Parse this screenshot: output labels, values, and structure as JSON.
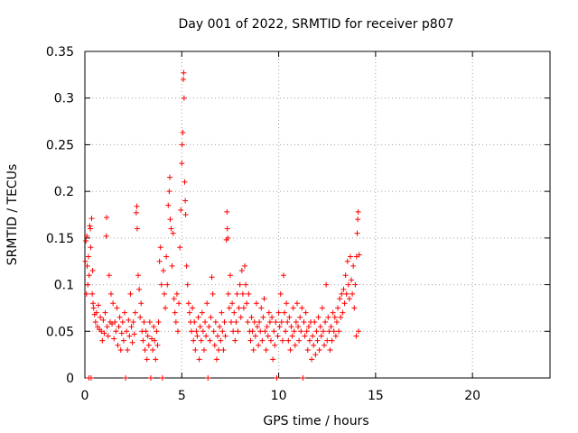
{
  "chart_data": {
    "type": "scatter",
    "title": "Day 001 of 2022, SRMTID for receiver p807",
    "xlabel": "GPS time / hours",
    "ylabel": "SRMTID / TECUs",
    "xlim": [
      0,
      24
    ],
    "ylim": [
      0,
      0.35
    ],
    "xticks": [
      0,
      5,
      10,
      15,
      20
    ],
    "xtick_labels": [
      "0",
      "5",
      "10",
      "15",
      "20"
    ],
    "yticks": [
      0,
      0.05,
      0.1,
      0.15,
      0.2,
      0.25,
      0.3,
      0.35
    ],
    "ytick_labels": [
      "0",
      "0.05",
      "0.1",
      "0.15",
      "0.2",
      "0.25",
      "0.3",
      "0.35"
    ],
    "grid": true,
    "marker": "+",
    "color": "#ff0000",
    "series": [
      {
        "name": "SRMTID",
        "points": [
          [
            0.02,
            0.125
          ],
          [
            0.05,
            0.147
          ],
          [
            0.08,
            0.09
          ],
          [
            0.1,
            0.152
          ],
          [
            0.12,
            0.12
          ],
          [
            0.15,
            0.1
          ],
          [
            0.18,
            0.13
          ],
          [
            0.2,
            0.0
          ],
          [
            0.22,
            0.11
          ],
          [
            0.25,
            0.163
          ],
          [
            0.28,
            0.16
          ],
          [
            0.3,
            0.14
          ],
          [
            0.32,
            0.0
          ],
          [
            0.35,
            0.171
          ],
          [
            0.38,
            0.09
          ],
          [
            0.4,
            0.115
          ],
          [
            0.42,
            0.08
          ],
          [
            0.45,
            0.075
          ],
          [
            0.5,
            0.068
          ],
          [
            0.55,
            0.06
          ],
          [
            0.6,
            0.07
          ],
          [
            0.65,
            0.055
          ],
          [
            0.7,
            0.078
          ],
          [
            0.75,
            0.052
          ],
          [
            0.8,
            0.065
          ],
          [
            0.85,
            0.05
          ],
          [
            0.9,
            0.04
          ],
          [
            0.95,
            0.062
          ],
          [
            1.0,
            0.048
          ],
          [
            1.05,
            0.07
          ],
          [
            1.1,
            0.152
          ],
          [
            1.12,
            0.172
          ],
          [
            1.15,
            0.055
          ],
          [
            1.2,
            0.045
          ],
          [
            1.25,
            0.11
          ],
          [
            1.3,
            0.06
          ],
          [
            1.35,
            0.09
          ],
          [
            1.4,
            0.058
          ],
          [
            1.45,
            0.08
          ],
          [
            1.5,
            0.042
          ],
          [
            1.55,
            0.06
          ],
          [
            1.6,
            0.05
          ],
          [
            1.65,
            0.075
          ],
          [
            1.7,
            0.035
          ],
          [
            1.75,
            0.055
          ],
          [
            1.8,
            0.065
          ],
          [
            1.85,
            0.03
          ],
          [
            1.9,
            0.048
          ],
          [
            1.95,
            0.06
          ],
          [
            2.0,
            0.04
          ],
          [
            2.05,
            0.07
          ],
          [
            2.1,
            0.0
          ],
          [
            2.15,
            0.05
          ],
          [
            2.2,
            0.03
          ],
          [
            2.25,
            0.062
          ],
          [
            2.3,
            0.045
          ],
          [
            2.35,
            0.09
          ],
          [
            2.4,
            0.055
          ],
          [
            2.45,
            0.038
          ],
          [
            2.5,
            0.06
          ],
          [
            2.55,
            0.047
          ],
          [
            2.6,
            0.07
          ],
          [
            2.65,
            0.177
          ],
          [
            2.68,
            0.184
          ],
          [
            2.7,
            0.16
          ],
          [
            2.75,
            0.11
          ],
          [
            2.8,
            0.095
          ],
          [
            2.85,
            0.065
          ],
          [
            2.9,
            0.08
          ],
          [
            2.95,
            0.05
          ],
          [
            3.0,
            0.04
          ],
          [
            3.05,
            0.06
          ],
          [
            3.1,
            0.03
          ],
          [
            3.15,
            0.05
          ],
          [
            3.2,
            0.02
          ],
          [
            3.25,
            0.045
          ],
          [
            3.3,
            0.035
          ],
          [
            3.35,
            0.06
          ],
          [
            3.4,
            0.0
          ],
          [
            3.45,
            0.042
          ],
          [
            3.5,
            0.03
          ],
          [
            3.55,
            0.055
          ],
          [
            3.6,
            0.04
          ],
          [
            3.65,
            0.02
          ],
          [
            3.7,
            0.05
          ],
          [
            3.75,
            0.035
          ],
          [
            3.8,
            0.06
          ],
          [
            3.85,
            0.125
          ],
          [
            3.9,
            0.14
          ],
          [
            3.95,
            0.1
          ],
          [
            4.0,
            0.0
          ],
          [
            4.05,
            0.115
          ],
          [
            4.1,
            0.09
          ],
          [
            4.15,
            0.075
          ],
          [
            4.2,
            0.13
          ],
          [
            4.25,
            0.1
          ],
          [
            4.3,
            0.185
          ],
          [
            4.35,
            0.2
          ],
          [
            4.38,
            0.215
          ],
          [
            4.4,
            0.17
          ],
          [
            4.45,
            0.16
          ],
          [
            4.5,
            0.12
          ],
          [
            4.55,
            0.155
          ],
          [
            4.6,
            0.085
          ],
          [
            4.65,
            0.07
          ],
          [
            4.7,
            0.06
          ],
          [
            4.75,
            0.09
          ],
          [
            4.8,
            0.05
          ],
          [
            4.85,
            0.08
          ],
          [
            4.9,
            0.14
          ],
          [
            4.95,
            0.18
          ],
          [
            5.0,
            0.23
          ],
          [
            5.02,
            0.25
          ],
          [
            5.05,
            0.263
          ],
          [
            5.08,
            0.32
          ],
          [
            5.1,
            0.327
          ],
          [
            5.12,
            0.3
          ],
          [
            5.15,
            0.21
          ],
          [
            5.18,
            0.19
          ],
          [
            5.2,
            0.175
          ],
          [
            5.25,
            0.12
          ],
          [
            5.3,
            0.1
          ],
          [
            5.35,
            0.08
          ],
          [
            5.4,
            0.07
          ],
          [
            5.45,
            0.06
          ],
          [
            5.5,
            0.05
          ],
          [
            5.55,
            0.075
          ],
          [
            5.6,
            0.04
          ],
          [
            5.65,
            0.06
          ],
          [
            5.7,
            0.03
          ],
          [
            5.75,
            0.05
          ],
          [
            5.8,
            0.045
          ],
          [
            5.85,
            0.065
          ],
          [
            5.9,
            0.02
          ],
          [
            5.95,
            0.055
          ],
          [
            6.0,
            0.04
          ],
          [
            6.05,
            0.07
          ],
          [
            6.1,
            0.05
          ],
          [
            6.15,
            0.03
          ],
          [
            6.2,
            0.06
          ],
          [
            6.25,
            0.045
          ],
          [
            6.3,
            0.08
          ],
          [
            6.35,
            0.0
          ],
          [
            6.4,
            0.055
          ],
          [
            6.45,
            0.04
          ],
          [
            6.5,
            0.065
          ],
          [
            6.55,
            0.108
          ],
          [
            6.6,
            0.09
          ],
          [
            6.65,
            0.05
          ],
          [
            6.7,
            0.035
          ],
          [
            6.75,
            0.06
          ],
          [
            6.8,
            0.02
          ],
          [
            6.85,
            0.045
          ],
          [
            6.9,
            0.03
          ],
          [
            6.95,
            0.055
          ],
          [
            7.0,
            0.04
          ],
          [
            7.05,
            0.07
          ],
          [
            7.1,
            0.05
          ],
          [
            7.15,
            0.03
          ],
          [
            7.2,
            0.06
          ],
          [
            7.25,
            0.045
          ],
          [
            7.3,
            0.148
          ],
          [
            7.33,
            0.178
          ],
          [
            7.35,
            0.16
          ],
          [
            7.38,
            0.15
          ],
          [
            7.4,
            0.09
          ],
          [
            7.45,
            0.075
          ],
          [
            7.5,
            0.11
          ],
          [
            7.55,
            0.06
          ],
          [
            7.6,
            0.08
          ],
          [
            7.65,
            0.05
          ],
          [
            7.7,
            0.07
          ],
          [
            7.75,
            0.04
          ],
          [
            7.8,
            0.06
          ],
          [
            7.85,
            0.09
          ],
          [
            7.9,
            0.05
          ],
          [
            7.95,
            0.075
          ],
          [
            8.0,
            0.1
          ],
          [
            8.05,
            0.065
          ],
          [
            8.1,
            0.115
          ],
          [
            8.15,
            0.09
          ],
          [
            8.2,
            0.075
          ],
          [
            8.25,
            0.12
          ],
          [
            8.3,
            0.1
          ],
          [
            8.35,
            0.08
          ],
          [
            8.4,
            0.06
          ],
          [
            8.45,
            0.09
          ],
          [
            8.5,
            0.05
          ],
          [
            8.55,
            0.04
          ],
          [
            8.6,
            0.065
          ],
          [
            8.65,
            0.05
          ],
          [
            8.7,
            0.03
          ],
          [
            8.75,
            0.06
          ],
          [
            8.8,
            0.045
          ],
          [
            8.85,
            0.08
          ],
          [
            8.9,
            0.055
          ],
          [
            8.95,
            0.035
          ],
          [
            9.0,
            0.06
          ],
          [
            9.05,
            0.05
          ],
          [
            9.1,
            0.075
          ],
          [
            9.15,
            0.04
          ],
          [
            9.2,
            0.065
          ],
          [
            9.25,
            0.085
          ],
          [
            9.3,
            0.05
          ],
          [
            9.35,
            0.03
          ],
          [
            9.4,
            0.055
          ],
          [
            9.45,
            0.045
          ],
          [
            9.5,
            0.07
          ],
          [
            9.55,
            0.06
          ],
          [
            9.6,
            0.04
          ],
          [
            9.65,
            0.065
          ],
          [
            9.7,
            0.02
          ],
          [
            9.75,
            0.05
          ],
          [
            9.8,
            0.035
          ],
          [
            9.85,
            0.06
          ],
          [
            9.9,
            0.0
          ],
          [
            9.95,
            0.045
          ],
          [
            10.0,
            0.07
          ],
          [
            10.05,
            0.055
          ],
          [
            10.1,
            0.09
          ],
          [
            10.15,
            0.06
          ],
          [
            10.2,
            0.04
          ],
          [
            10.25,
            0.11
          ],
          [
            10.3,
            0.07
          ],
          [
            10.35,
            0.05
          ],
          [
            10.4,
            0.08
          ],
          [
            10.45,
            0.06
          ],
          [
            10.5,
            0.04
          ],
          [
            10.55,
            0.065
          ],
          [
            10.6,
            0.03
          ],
          [
            10.65,
            0.055
          ],
          [
            10.7,
            0.045
          ],
          [
            10.75,
            0.075
          ],
          [
            10.8,
            0.05
          ],
          [
            10.85,
            0.035
          ],
          [
            10.9,
            0.06
          ],
          [
            10.95,
            0.08
          ],
          [
            11.0,
            0.055
          ],
          [
            11.05,
            0.04
          ],
          [
            11.1,
            0.065
          ],
          [
            11.15,
            0.05
          ],
          [
            11.2,
            0.075
          ],
          [
            11.25,
            0.0
          ],
          [
            11.3,
            0.06
          ],
          [
            11.35,
            0.045
          ],
          [
            11.4,
            0.07
          ],
          [
            11.45,
            0.05
          ],
          [
            11.5,
            0.03
          ],
          [
            11.55,
            0.055
          ],
          [
            11.6,
            0.04
          ],
          [
            11.65,
            0.06
          ],
          [
            11.7,
            0.02
          ],
          [
            11.75,
            0.045
          ],
          [
            11.8,
            0.035
          ],
          [
            11.85,
            0.06
          ],
          [
            11.9,
            0.025
          ],
          [
            11.95,
            0.05
          ],
          [
            12.0,
            0.04
          ],
          [
            12.05,
            0.065
          ],
          [
            12.1,
            0.03
          ],
          [
            12.15,
            0.055
          ],
          [
            12.2,
            0.045
          ],
          [
            12.25,
            0.075
          ],
          [
            12.3,
            0.05
          ],
          [
            12.35,
            0.035
          ],
          [
            12.4,
            0.06
          ],
          [
            12.45,
            0.1
          ],
          [
            12.5,
            0.04
          ],
          [
            12.55,
            0.065
          ],
          [
            12.6,
            0.05
          ],
          [
            12.65,
            0.03
          ],
          [
            12.7,
            0.055
          ],
          [
            12.75,
            0.04
          ],
          [
            12.8,
            0.07
          ],
          [
            12.85,
            0.05
          ],
          [
            12.9,
            0.065
          ],
          [
            12.95,
            0.045
          ],
          [
            13.0,
            0.06
          ],
          [
            13.05,
            0.075
          ],
          [
            13.1,
            0.05
          ],
          [
            13.15,
            0.085
          ],
          [
            13.2,
            0.065
          ],
          [
            13.25,
            0.09
          ],
          [
            13.3,
            0.07
          ],
          [
            13.35,
            0.095
          ],
          [
            13.4,
            0.08
          ],
          [
            13.45,
            0.11
          ],
          [
            13.5,
            0.09
          ],
          [
            13.55,
            0.125
          ],
          [
            13.6,
            0.1
          ],
          [
            13.65,
            0.085
          ],
          [
            13.7,
            0.13
          ],
          [
            13.75,
            0.105
          ],
          [
            13.8,
            0.09
          ],
          [
            13.85,
            0.12
          ],
          [
            13.9,
            0.075
          ],
          [
            13.95,
            0.1
          ],
          [
            14.0,
            0.045
          ],
          [
            14.02,
            0.13
          ],
          [
            14.05,
            0.155
          ],
          [
            14.08,
            0.17
          ],
          [
            14.1,
            0.178
          ],
          [
            14.12,
            0.05
          ],
          [
            14.15,
            0.132
          ]
        ]
      }
    ]
  }
}
